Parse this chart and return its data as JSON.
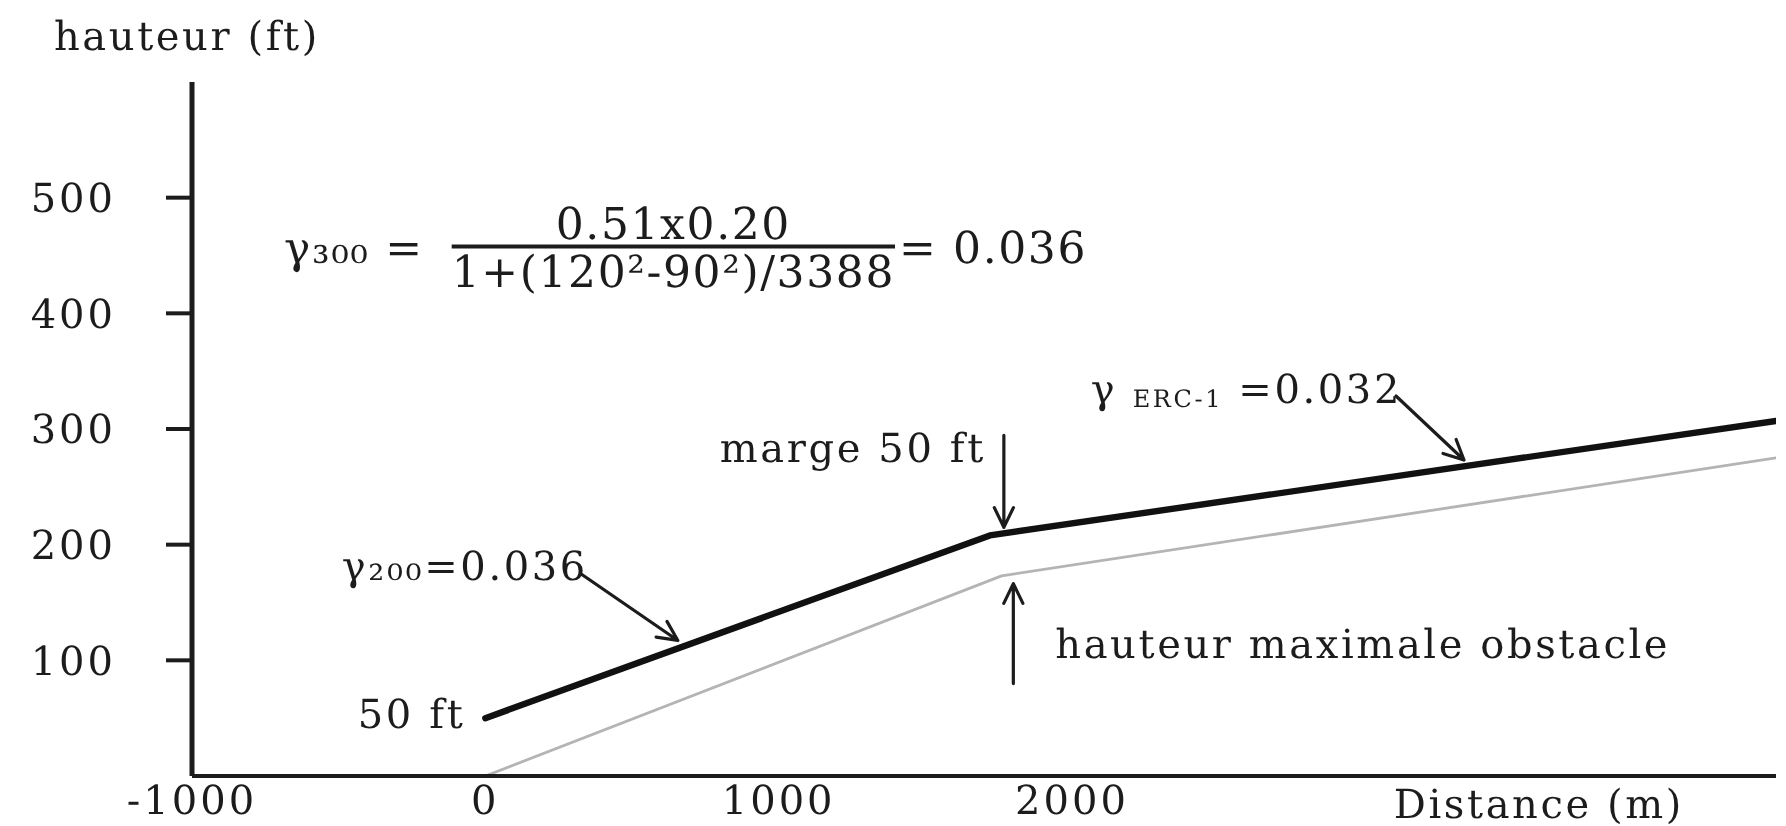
{
  "chart_data": {
    "type": "line",
    "xlabel": "Distance (m)",
    "ylabel": "hauteur (ft)",
    "series": [
      {
        "color": "#111111",
        "x": [
          0,
          1720,
          4400
        ],
        "values": [
          50,
          208,
          307
        ]
      },
      {
        "color": "#b4b4b4",
        "x": [
          0,
          1760,
          4400
        ],
        "values": [
          0,
          173,
          275
        ]
      }
    ],
    "xlim": [
      -1000,
      4400
    ],
    "xticks": [
      -1000,
      0,
      1000,
      2000
    ],
    "ylim": [
      0,
      600
    ],
    "yticks": [
      100,
      200,
      300,
      400,
      500
    ],
    "annotations": [
      "γ₃₀₀ =",
      "0.51x0.20",
      "1+(120²-90²)/3388",
      "= 0.036",
      {
        "text": "γ₂₀₀=0.036",
        "x": 670,
        "y": 112
      },
      {
        "text": "γ $_{ERC-1}$ =0.032",
        "x": 3350,
        "y": 268
      },
      {
        "text": "marge 50 ft",
        "x": 1720,
        "y": 208
      },
      {
        "text": "hauteur maximale obstacle",
        "x": 1800,
        "y": 175
      },
      {
        "text": "50 ft",
        "x": 0,
        "y": 50
      }
    ],
    "grid": false,
    "marker": "none",
    "line_style": "solid"
  }
}
